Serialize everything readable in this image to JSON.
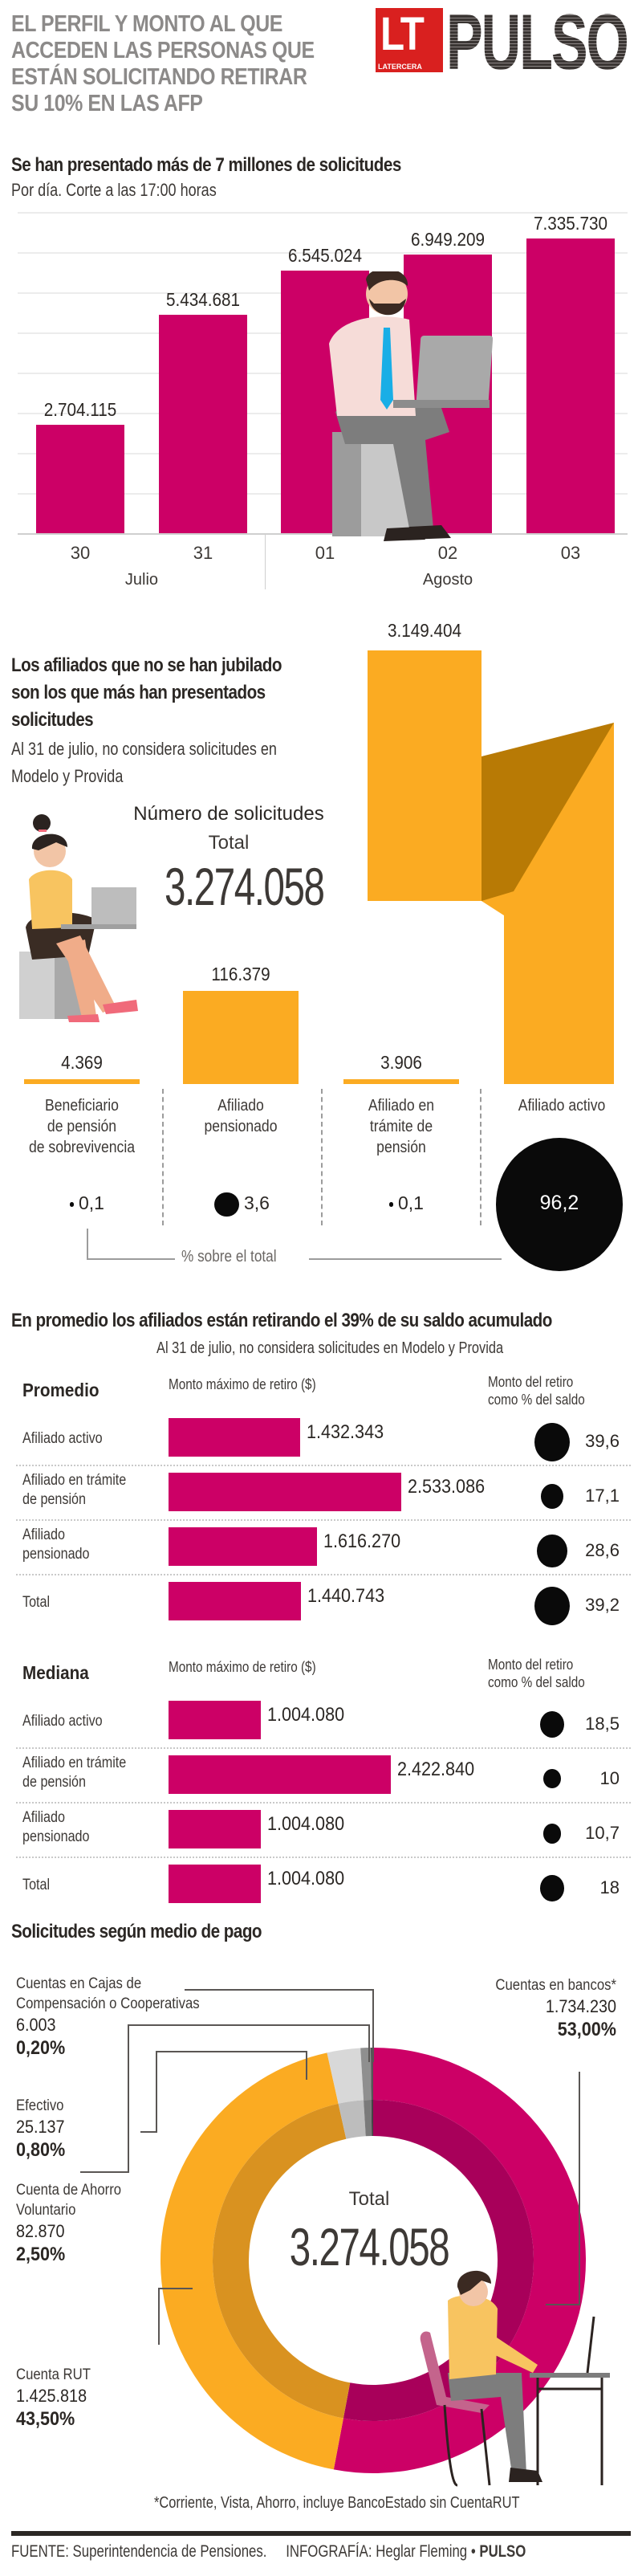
{
  "header": {
    "title": "EL PERFIL Y MONTO AL QUE ACCEDEN LAS PERSONAS QUE ESTÁN SOLICITANDO RETIRAR SU 10% EN LAS AFP",
    "logo_lt": "LT",
    "logo_latercera": "LATERCERA",
    "logo_pulso": "PULSO"
  },
  "colors": {
    "magenta": "#cc0066",
    "orange": "#fbab22",
    "dark_orange": "#b87a05",
    "black_dot": "#0a0a0a",
    "title_gray": "#8c8a89",
    "logo_red": "#d9201f"
  },
  "chart_data": [
    {
      "type": "bar",
      "title": "Se han presentado más de 7 millones de solicitudes",
      "subtitle": "Por día. Corte a las 17:00 horas",
      "categories": [
        "30",
        "31",
        "01",
        "02",
        "03"
      ],
      "values": [
        2704115,
        5434681,
        6545024,
        6949209,
        7335730
      ],
      "value_labels": [
        "2.704.115",
        "5.434.681",
        "6.545.024",
        "6.949.209",
        "7.335.730"
      ],
      "groups": [
        {
          "label": "Julio",
          "categories": [
            "30",
            "31"
          ]
        },
        {
          "label": "Agosto",
          "categories": [
            "01",
            "02",
            "03"
          ]
        }
      ],
      "xlabel": "",
      "ylabel": "",
      "ylim": [
        0,
        8000000
      ],
      "grid": true
    },
    {
      "type": "bar",
      "title": "Los afiliados que no se han jubilado son los que más han presentados solicitudes",
      "subtitle": "Al 31 de julio, no considera solicitudes en Modelo y Provida",
      "total_title": "Número de solicitudes",
      "total_label": "Total",
      "total_value": "3.274.058",
      "categories": [
        "Beneficiario de pensión de sobrevivencia",
        "Afiliado pensionado",
        "Afiliado en trámite de pensión",
        "Afiliado activo"
      ],
      "category_lines": [
        [
          "Beneficiario",
          "de pensión",
          "de sobrevivencia"
        ],
        [
          "Afiliado",
          "pensionado"
        ],
        [
          "Afiliado en",
          "trámite de",
          "pensión"
        ],
        [
          "Afiliado activo"
        ]
      ],
      "values": [
        4369,
        116379,
        3906,
        3149404
      ],
      "value_labels": [
        "4.369",
        "116.379",
        "3.906",
        "3.149.404"
      ],
      "pct_values": [
        0.1,
        3.6,
        0.1,
        96.2
      ],
      "pct_labels": [
        "0,1",
        "3,6",
        "0,1",
        "96,2"
      ],
      "pct_caption": "% sobre el total"
    },
    {
      "type": "table",
      "title": "En promedio los afiliados están retirando el 39% de su saldo acumulado",
      "subtitle": "Al 31 de julio, no considera solicitudes en Modelo y Provida",
      "col_amount": "Monto máximo de retiro ($)",
      "col_pct_line1": "Monto del retiro",
      "col_pct_line2": "como % del saldo",
      "groups": [
        {
          "name": "Promedio",
          "rows": [
            {
              "label_lines": [
                "Afiliado activo"
              ],
              "amount": 1432343,
              "amount_label": "1.432.343",
              "pct": 39.6,
              "pct_label": "39,6"
            },
            {
              "label_lines": [
                "Afiliado en trámite",
                "de pensión"
              ],
              "amount": 2533086,
              "amount_label": "2.533.086",
              "pct": 17.1,
              "pct_label": "17,1"
            },
            {
              "label_lines": [
                "Afiliado",
                "pensionado"
              ],
              "amount": 1616270,
              "amount_label": "1.616.270",
              "pct": 28.6,
              "pct_label": "28,6"
            },
            {
              "label_lines": [
                "Total"
              ],
              "amount": 1440743,
              "amount_label": "1.440.743",
              "pct": 39.2,
              "pct_label": "39,2"
            }
          ]
        },
        {
          "name": "Mediana",
          "rows": [
            {
              "label_lines": [
                "Afiliado activo"
              ],
              "amount": 1004080,
              "amount_label": "1.004.080",
              "pct": 18.5,
              "pct_label": "18,5"
            },
            {
              "label_lines": [
                "Afiliado en trámite",
                "de pensión"
              ],
              "amount": 2422840,
              "amount_label": "2.422.840",
              "pct": 10,
              "pct_label": "10"
            },
            {
              "label_lines": [
                "Afiliado",
                "pensionado"
              ],
              "amount": 1004080,
              "amount_label": "1.004.080",
              "pct": 10.7,
              "pct_label": "10,7"
            },
            {
              "label_lines": [
                "Total"
              ],
              "amount": 1004080,
              "amount_label": "1.004.080",
              "pct": 18,
              "pct_label": "18"
            }
          ]
        }
      ]
    },
    {
      "type": "pie",
      "title": "Solicitudes según medio de pago",
      "center_label": "Total",
      "center_value": "3.274.058",
      "slices": [
        {
          "label_lines": [
            "Cuentas en bancos*"
          ],
          "value": 1734230,
          "value_label": "1.734.230",
          "pct": 53.0,
          "pct_label": "53,00%",
          "color": "#cc0066",
          "inner": "#a8005a"
        },
        {
          "label_lines": [
            "Cuenta RUT"
          ],
          "value": 1425818,
          "value_label": "1.425.818",
          "pct": 43.5,
          "pct_label": "43,50%",
          "color": "#fbab22",
          "inner": "#d99220"
        },
        {
          "label_lines": [
            "Cuenta de Ahorro",
            "Voluntario"
          ],
          "value": 82870,
          "value_label": "82.870",
          "pct": 2.5,
          "pct_label": "2,50%",
          "color": "#d8d8d8",
          "inner": "#bdbdbd"
        },
        {
          "label_lines": [
            "Efectivo"
          ],
          "value": 25137,
          "value_label": "25.137",
          "pct": 0.8,
          "pct_label": "0,80%",
          "color": "#8f8f8f",
          "inner": "#7a7a7a"
        },
        {
          "label_lines": [
            "Cuentas en Cajas de",
            "Compensación o Cooperativas"
          ],
          "value": 6003,
          "value_label": "6.003",
          "pct": 0.2,
          "pct_label": "0,20%",
          "color": "#555555",
          "inner": "#444444"
        }
      ],
      "footnote": "*Corriente, Vista, Ahorro, incluye BancoEstado sin CuentaRUT"
    }
  ],
  "footer": {
    "source_label": "FUENTE:",
    "source_text": "Superintendencia de Pensiones.",
    "credit_label": "INFOGRAFÍA:",
    "credit_text": "Heglar Fleming",
    "bullet": "•",
    "brand": "PULSO"
  }
}
